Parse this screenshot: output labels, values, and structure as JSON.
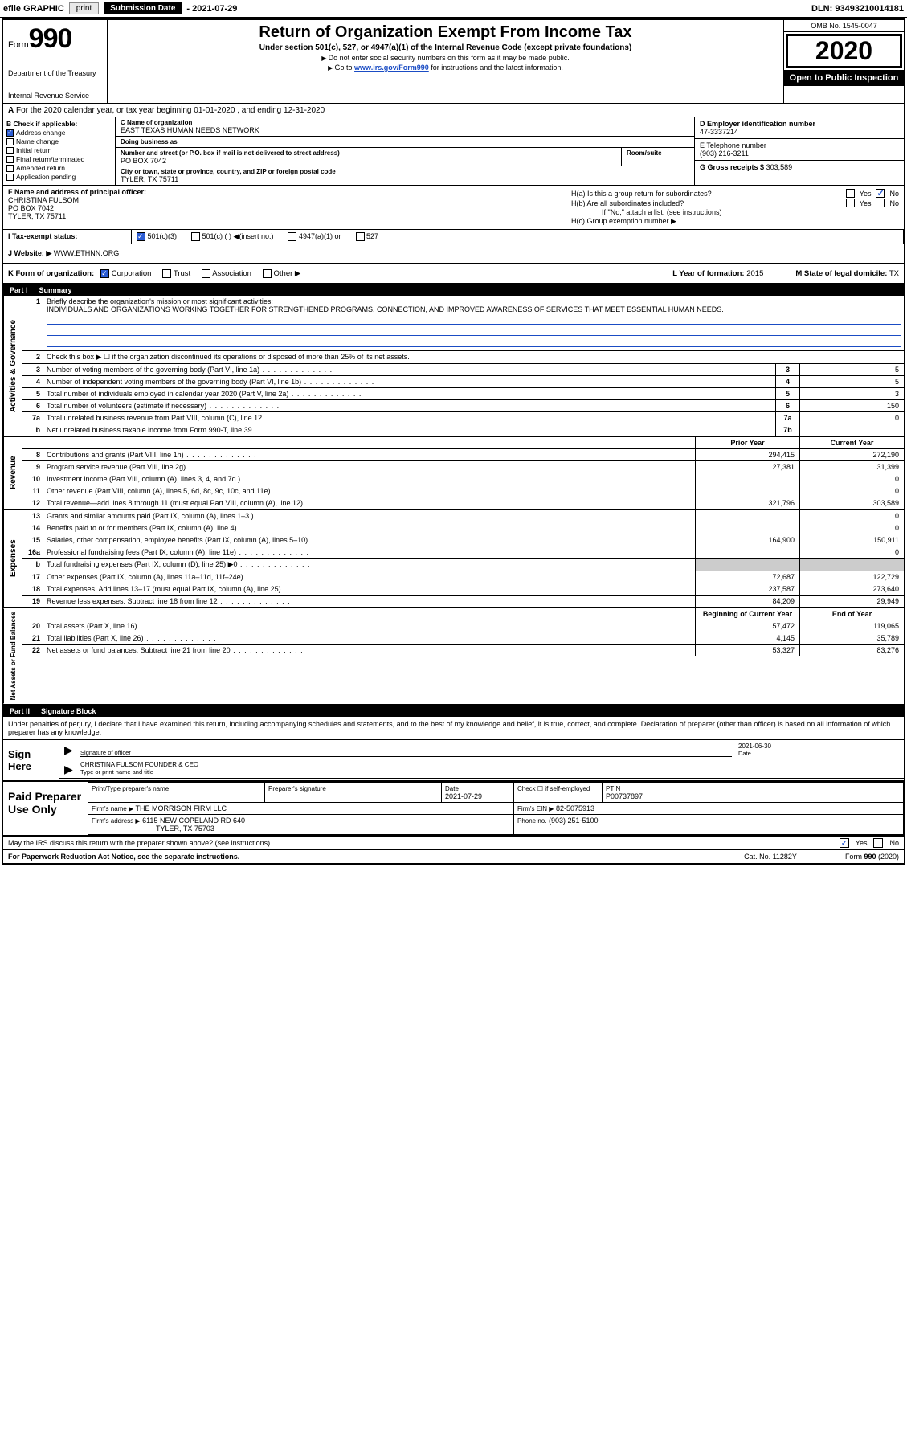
{
  "topbar": {
    "efile": "efile GRAPHIC",
    "print": "print",
    "sub_label": "Submission Date",
    "sub_date": "- 2021-07-29",
    "dln": "DLN: 93493210014181"
  },
  "header": {
    "form_word": "Form",
    "form_num": "990",
    "title": "Return of Organization Exempt From Income Tax",
    "subtitle": "Under section 501(c), 527, or 4947(a)(1) of the Internal Revenue Code (except private foundations)",
    "note1": "Do not enter social security numbers on this form as it may be made public.",
    "note2_pre": "Go to ",
    "note2_link": "www.irs.gov/Form990",
    "note2_post": " for instructions and the latest information.",
    "dept": "Department of the Treasury",
    "irs": "Internal Revenue Service",
    "omb": "OMB No. 1545-0047",
    "year": "2020",
    "open": "Open to Public Inspection"
  },
  "lineA": {
    "prefix": "A",
    "text": "For the 2020 calendar year, or tax year beginning 01-01-2020     , and ending 12-31-2020"
  },
  "colB": {
    "label": "B Check if applicable:",
    "opts": [
      "Address change",
      "Name change",
      "Initial return",
      "Final return/terminated",
      "Amended return",
      "Application pending"
    ],
    "checked_idx": 0
  },
  "colC": {
    "name_lbl": "C Name of organization",
    "name": "EAST TEXAS HUMAN NEEDS NETWORK",
    "dba_lbl": "Doing business as",
    "dba": "",
    "addr_lbl": "Number and street (or P.O. box if mail is not delivered to street address)",
    "room_lbl": "Room/suite",
    "addr": "PO BOX 7042",
    "city_lbl": "City or town, state or province, country, and ZIP or foreign postal code",
    "city": "TYLER, TX  75711"
  },
  "colD": {
    "ein_lbl": "D Employer identification number",
    "ein": "47-3337214",
    "phone_lbl": "E Telephone number",
    "phone": "(903) 216-3211",
    "gross_lbl": "G Gross receipts $",
    "gross": "303,589"
  },
  "rowF": {
    "lbl": "F  Name and address of principal officer:",
    "name": "CHRISTINA FULSOM",
    "addr1": "PO BOX 7042",
    "addr2": "TYLER, TX  75711"
  },
  "rowH": {
    "ha": "H(a)  Is this a group return for subordinates?",
    "hb": "H(b)  Are all subordinates included?",
    "hb_note": "If \"No,\" attach a list. (see instructions)",
    "hc": "H(c)  Group exemption number ▶",
    "yes": "Yes",
    "no": "No"
  },
  "rowI": {
    "lbl": "I   Tax-exempt status:",
    "opts": [
      "501(c)(3)",
      "501(c) (  ) ◀(insert no.)",
      "4947(a)(1) or",
      "527"
    ]
  },
  "rowJ": {
    "lbl": "J   Website: ▶",
    "val": "WWW.ETHNN.ORG"
  },
  "rowK": {
    "lbl": "K Form of organization:",
    "opts": [
      "Corporation",
      "Trust",
      "Association",
      "Other ▶"
    ],
    "l_lbl": "L Year of formation:",
    "l_val": "2015",
    "m_lbl": "M State of legal domicile:",
    "m_val": "TX"
  },
  "part1": {
    "hdr_num": "Part I",
    "hdr_title": "Summary",
    "q1": "Briefly describe the organization's mission or most significant activities:",
    "mission": "INDIVIDUALS AND ORGANIZATIONS WORKING TOGETHER FOR STRENGTHENED PROGRAMS, CONNECTION, AND IMPROVED AWARENESS OF SERVICES THAT MEET ESSENTIAL HUMAN NEEDS.",
    "q2": "Check this box ▶ ☐  if the organization discontinued its operations or disposed of more than 25% of its net assets.",
    "side_ag": "Activities & Governance",
    "rows_ag": [
      {
        "n": "3",
        "t": "Number of voting members of the governing body (Part VI, line 1a)",
        "b": "3",
        "v": "5"
      },
      {
        "n": "4",
        "t": "Number of independent voting members of the governing body (Part VI, line 1b)",
        "b": "4",
        "v": "5"
      },
      {
        "n": "5",
        "t": "Total number of individuals employed in calendar year 2020 (Part V, line 2a)",
        "b": "5",
        "v": "3"
      },
      {
        "n": "6",
        "t": "Total number of volunteers (estimate if necessary)",
        "b": "6",
        "v": "150"
      },
      {
        "n": "7a",
        "t": "Total unrelated business revenue from Part VIII, column (C), line 12",
        "b": "7a",
        "v": "0"
      },
      {
        "n": "b",
        "t": "Net unrelated business taxable income from Form 990-T, line 39",
        "b": "7b",
        "v": ""
      }
    ],
    "col_prior": "Prior Year",
    "col_curr": "Current Year",
    "side_rev": "Revenue",
    "rows_rev": [
      {
        "n": "8",
        "t": "Contributions and grants (Part VIII, line 1h)",
        "p": "294,415",
        "c": "272,190"
      },
      {
        "n": "9",
        "t": "Program service revenue (Part VIII, line 2g)",
        "p": "27,381",
        "c": "31,399"
      },
      {
        "n": "10",
        "t": "Investment income (Part VIII, column (A), lines 3, 4, and 7d )",
        "p": "",
        "c": "0"
      },
      {
        "n": "11",
        "t": "Other revenue (Part VIII, column (A), lines 5, 6d, 8c, 9c, 10c, and 11e)",
        "p": "",
        "c": "0"
      },
      {
        "n": "12",
        "t": "Total revenue—add lines 8 through 11 (must equal Part VIII, column (A), line 12)",
        "p": "321,796",
        "c": "303,589"
      }
    ],
    "side_exp": "Expenses",
    "rows_exp": [
      {
        "n": "13",
        "t": "Grants and similar amounts paid (Part IX, column (A), lines 1–3 )",
        "p": "",
        "c": "0"
      },
      {
        "n": "14",
        "t": "Benefits paid to or for members (Part IX, column (A), line 4)",
        "p": "",
        "c": "0"
      },
      {
        "n": "15",
        "t": "Salaries, other compensation, employee benefits (Part IX, column (A), lines 5–10)",
        "p": "164,900",
        "c": "150,911"
      },
      {
        "n": "16a",
        "t": "Professional fundraising fees (Part IX, column (A), line 11e)",
        "p": "",
        "c": "0"
      },
      {
        "n": "b",
        "t": "Total fundraising expenses (Part IX, column (D), line 25) ▶0",
        "p": "shade",
        "c": "shade"
      },
      {
        "n": "17",
        "t": "Other expenses (Part IX, column (A), lines 11a–11d, 11f–24e)",
        "p": "72,687",
        "c": "122,729"
      },
      {
        "n": "18",
        "t": "Total expenses. Add lines 13–17 (must equal Part IX, column (A), line 25)",
        "p": "237,587",
        "c": "273,640"
      },
      {
        "n": "19",
        "t": "Revenue less expenses. Subtract line 18 from line 12",
        "p": "84,209",
        "c": "29,949"
      }
    ],
    "col_beg": "Beginning of Current Year",
    "col_end": "End of Year",
    "side_net": "Net Assets or Fund Balances",
    "rows_net": [
      {
        "n": "20",
        "t": "Total assets (Part X, line 16)",
        "p": "57,472",
        "c": "119,065"
      },
      {
        "n": "21",
        "t": "Total liabilities (Part X, line 26)",
        "p": "4,145",
        "c": "35,789"
      },
      {
        "n": "22",
        "t": "Net assets or fund balances. Subtract line 21 from line 20",
        "p": "53,327",
        "c": "83,276"
      }
    ]
  },
  "part2": {
    "hdr_num": "Part II",
    "hdr_title": "Signature Block",
    "intro": "Under penalties of perjury, I declare that I have examined this return, including accompanying schedules and statements, and to the best of my knowledge and belief, it is true, correct, and complete. Declaration of preparer (other than officer) is based on all information of which preparer has any knowledge.",
    "sign_here": "Sign Here",
    "sig_lbl": "Signature of officer",
    "date_lbl": "Date",
    "sig_date": "2021-06-30",
    "name_title": "CHRISTINA FULSOM  FOUNDER & CEO",
    "name_lbl": "Type or print name and title",
    "paid": "Paid Preparer Use Only",
    "prep_name_lbl": "Print/Type preparer's name",
    "prep_sig_lbl": "Preparer's signature",
    "prep_date_lbl": "Date",
    "prep_date": "2021-07-29",
    "self_emp": "Check ☐ if self-employed",
    "ptin_lbl": "PTIN",
    "ptin": "P00737897",
    "firm_name_lbl": "Firm's name      ▶",
    "firm_name": "THE MORRISON FIRM LLC",
    "firm_ein_lbl": "Firm's EIN ▶",
    "firm_ein": "82-5075913",
    "firm_addr_lbl": "Firm's address ▶",
    "firm_addr1": "6115 NEW COPELAND RD 640",
    "firm_addr2": "TYLER, TX  75703",
    "firm_phone_lbl": "Phone no.",
    "firm_phone": "(903) 251-5100",
    "discuss": "May the IRS discuss this return with the preparer shown above? (see instructions)",
    "paperwork": "For Paperwork Reduction Act Notice, see the separate instructions.",
    "cat": "Cat. No. 11282Y",
    "formno": "Form 990 (2020)"
  }
}
